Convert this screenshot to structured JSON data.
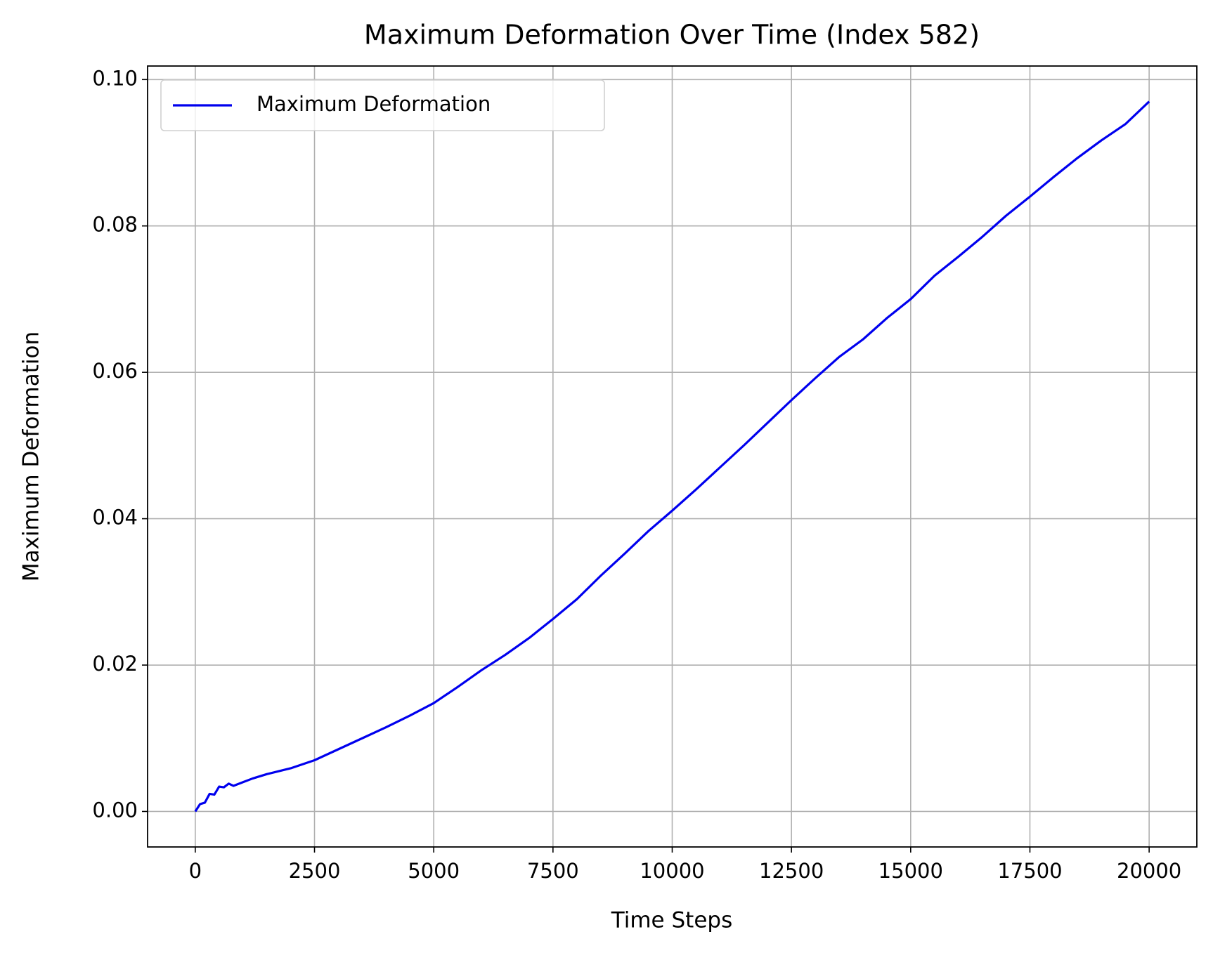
{
  "chart_data": {
    "type": "line",
    "title": "Maximum Deformation Over Time (Index 582)",
    "x_label": "Time Steps",
    "y_label": "Maximum Deformation",
    "x": [
      0,
      100,
      200,
      300,
      400,
      500,
      600,
      700,
      800,
      1000,
      1200,
      1500,
      2000,
      2500,
      3000,
      3500,
      4000,
      4500,
      5000,
      5500,
      6000,
      6500,
      7000,
      7500,
      8000,
      8500,
      9000,
      9500,
      10000,
      10500,
      11000,
      11500,
      12000,
      12500,
      13000,
      13500,
      14000,
      14500,
      15000,
      15500,
      16000,
      16500,
      17000,
      17500,
      18000,
      18500,
      19000,
      19500,
      20000
    ],
    "series": [
      {
        "name": "Maximum Deformation",
        "color": "#0000ee",
        "values": [
          0,
          0.001,
          0.0012,
          0.0024,
          0.0023,
          0.0034,
          0.0033,
          0.0038,
          0.0035,
          0.004,
          0.0045,
          0.0051,
          0.0059,
          0.007,
          0.0085,
          0.01,
          0.0115,
          0.0131,
          0.0148,
          0.017,
          0.0193,
          0.0214,
          0.0237,
          0.0263,
          0.029,
          0.0322,
          0.0352,
          0.0383,
          0.0411,
          0.044,
          0.047,
          0.05,
          0.0531,
          0.0562,
          0.0592,
          0.0621,
          0.0645,
          0.0674,
          0.07,
          0.0732,
          0.0758,
          0.0785,
          0.0814,
          0.084,
          0.0867,
          0.0893,
          0.0917,
          0.0939,
          0.097
        ]
      }
    ],
    "xlim": [
      -1000,
      21000
    ],
    "ylim": [
      -0.00485,
      0.10185
    ],
    "xticks": [
      0,
      2500,
      5000,
      7500,
      10000,
      12500,
      15000,
      17500,
      20000
    ],
    "yticks": [
      {
        "value": 0,
        "label": "0.00"
      },
      {
        "value": 0.02,
        "label": "0.02"
      },
      {
        "value": 0.04,
        "label": "0.04"
      },
      {
        "value": 0.06,
        "label": "0.06"
      },
      {
        "value": 0.08,
        "label": "0.08"
      },
      {
        "value": 0.1,
        "label": "0.10"
      }
    ],
    "grid": true,
    "legend": "upper-left"
  }
}
